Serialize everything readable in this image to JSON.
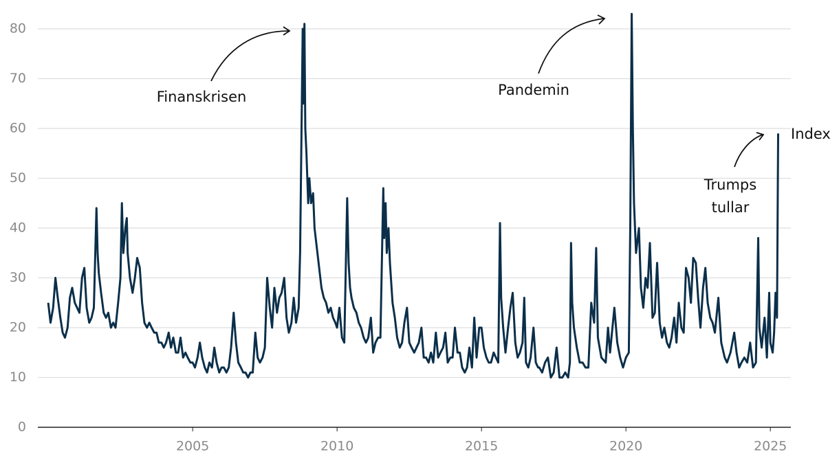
{
  "chart_data": {
    "type": "line",
    "ylabel": "Index",
    "color": "#0b2f4a",
    "grid": true,
    "xlim": [
      1999.64,
      2025.71
    ],
    "ylim": [
      0,
      80
    ],
    "xticks": [
      2005,
      2010,
      2015,
      2020,
      2025
    ],
    "yticks": [
      0,
      10,
      20,
      30,
      40,
      50,
      60,
      70,
      80
    ],
    "annotations": [
      {
        "lines": [
          "Finanskrisen"
        ]
      },
      {
        "lines": [
          "Pandemin"
        ]
      },
      {
        "lines": [
          "Trumps",
          "tullar"
        ]
      }
    ],
    "x": [
      2000.0,
      2000.08,
      2000.17,
      2000.25,
      2000.33,
      2000.42,
      2000.5,
      2000.58,
      2000.67,
      2000.75,
      2000.83,
      2000.92,
      2001.0,
      2001.08,
      2001.17,
      2001.25,
      2001.33,
      2001.42,
      2001.5,
      2001.58,
      2001.67,
      2001.71,
      2001.75,
      2001.83,
      2001.92,
      2002.0,
      2002.08,
      2002.17,
      2002.25,
      2002.33,
      2002.42,
      2002.5,
      2002.55,
      2002.6,
      2002.67,
      2002.72,
      2002.75,
      2002.83,
      2002.92,
      2003.0,
      2003.08,
      2003.17,
      2003.25,
      2003.33,
      2003.42,
      2003.5,
      2003.58,
      2003.67,
      2003.75,
      2003.83,
      2003.92,
      2004.0,
      2004.08,
      2004.17,
      2004.25,
      2004.33,
      2004.42,
      2004.5,
      2004.58,
      2004.67,
      2004.75,
      2004.83,
      2004.92,
      2005.0,
      2005.08,
      2005.17,
      2005.25,
      2005.33,
      2005.42,
      2005.5,
      2005.58,
      2005.67,
      2005.75,
      2005.83,
      2005.92,
      2006.0,
      2006.08,
      2006.17,
      2006.25,
      2006.33,
      2006.42,
      2006.5,
      2006.58,
      2006.67,
      2006.75,
      2006.83,
      2006.92,
      2007.0,
      2007.08,
      2007.17,
      2007.25,
      2007.33,
      2007.42,
      2007.5,
      2007.58,
      2007.67,
      2007.75,
      2007.83,
      2007.92,
      2008.0,
      2008.08,
      2008.17,
      2008.25,
      2008.33,
      2008.42,
      2008.5,
      2008.58,
      2008.67,
      2008.72,
      2008.76,
      2008.79,
      2008.81,
      2008.84,
      2008.87,
      2008.9,
      2008.94,
      2009.0,
      2009.04,
      2009.1,
      2009.17,
      2009.22,
      2009.3,
      2009.38,
      2009.46,
      2009.54,
      2009.62,
      2009.7,
      2009.78,
      2009.86,
      2009.94,
      2010.0,
      2010.08,
      2010.17,
      2010.25,
      2010.35,
      2010.4,
      2010.45,
      2010.5,
      2010.58,
      2010.67,
      2010.75,
      2010.83,
      2010.92,
      2011.0,
      2011.08,
      2011.17,
      2011.25,
      2011.33,
      2011.42,
      2011.5,
      2011.6,
      2011.63,
      2011.68,
      2011.72,
      2011.78,
      2011.83,
      2011.92,
      2012.0,
      2012.08,
      2012.17,
      2012.25,
      2012.33,
      2012.42,
      2012.5,
      2012.58,
      2012.67,
      2012.75,
      2012.83,
      2012.92,
      2013.0,
      2013.08,
      2013.17,
      2013.25,
      2013.33,
      2013.42,
      2013.5,
      2013.58,
      2013.67,
      2013.75,
      2013.83,
      2013.92,
      2014.0,
      2014.08,
      2014.17,
      2014.25,
      2014.33,
      2014.42,
      2014.5,
      2014.58,
      2014.67,
      2014.75,
      2014.83,
      2014.92,
      2015.0,
      2015.08,
      2015.17,
      2015.25,
      2015.33,
      2015.42,
      2015.5,
      2015.58,
      2015.64,
      2015.68,
      2015.75,
      2015.83,
      2015.92,
      2016.0,
      2016.08,
      2016.17,
      2016.25,
      2016.33,
      2016.42,
      2016.48,
      2016.54,
      2016.62,
      2016.7,
      2016.8,
      2016.88,
      2016.96,
      2017.0,
      2017.1,
      2017.2,
      2017.3,
      2017.4,
      2017.5,
      2017.6,
      2017.7,
      2017.8,
      2017.9,
      2018.0,
      2018.06,
      2018.1,
      2018.14,
      2018.2,
      2018.3,
      2018.4,
      2018.5,
      2018.6,
      2018.7,
      2018.8,
      2018.9,
      2018.97,
      2019.03,
      2019.15,
      2019.3,
      2019.38,
      2019.45,
      2019.6,
      2019.7,
      2019.8,
      2019.9,
      2020.0,
      2020.1,
      2020.15,
      2020.2,
      2020.24,
      2020.28,
      2020.35,
      2020.45,
      2020.52,
      2020.6,
      2020.68,
      2020.75,
      2020.83,
      2020.92,
      2021.0,
      2021.08,
      2021.17,
      2021.25,
      2021.33,
      2021.42,
      2021.5,
      2021.58,
      2021.67,
      2021.75,
      2021.83,
      2021.92,
      2022.0,
      2022.08,
      2022.17,
      2022.25,
      2022.33,
      2022.42,
      2022.5,
      2022.58,
      2022.67,
      2022.75,
      2022.83,
      2022.92,
      2023.0,
      2023.08,
      2023.2,
      2023.3,
      2023.42,
      2023.5,
      2023.62,
      2023.75,
      2023.83,
      2023.92,
      2024.0,
      2024.1,
      2024.2,
      2024.3,
      2024.4,
      2024.5,
      2024.58,
      2024.62,
      2024.7,
      2024.8,
      2024.88,
      2024.96,
      2025.0,
      2025.08,
      2025.13,
      2025.18,
      2025.23,
      2025.27
    ],
    "values": [
      25,
      21,
      24,
      30,
      26,
      22,
      19,
      18,
      20,
      26,
      28,
      25,
      24,
      23,
      30,
      32,
      24,
      21,
      22,
      24,
      44,
      35,
      31,
      27,
      23,
      22,
      23,
      20,
      21,
      20,
      25,
      30,
      45,
      35,
      40,
      42,
      35,
      30,
      27,
      30,
      34,
      32,
      25,
      21,
      20,
      21,
      20,
      19,
      19,
      17,
      17,
      16,
      17,
      19,
      16,
      18,
      15,
      15,
      18,
      14,
      15,
      14,
      13,
      13,
      12,
      14,
      17,
      14,
      12,
      11,
      13,
      12,
      16,
      13,
      11,
      12,
      12,
      11,
      12,
      16,
      23,
      17,
      13,
      12,
      11,
      11,
      10,
      11,
      11,
      19,
      14,
      13,
      14,
      16,
      30,
      24,
      20,
      28,
      23,
      26,
      27,
      30,
      22,
      19,
      21,
      26,
      21,
      24,
      35,
      55,
      70,
      80,
      65,
      81,
      60,
      55,
      45,
      50,
      45,
      47,
      40,
      36,
      32,
      28,
      26,
      25,
      23,
      24,
      22,
      21,
      20,
      24,
      18,
      17,
      46,
      33,
      28,
      26,
      24,
      23,
      21,
      20,
      18,
      17,
      18,
      22,
      15,
      17,
      18,
      18,
      48,
      38,
      45,
      35,
      40,
      33,
      25,
      22,
      18,
      16,
      17,
      21,
      24,
      17,
      16,
      15,
      16,
      17,
      20,
      14,
      14,
      13,
      15,
      13,
      19,
      14,
      15,
      16,
      19,
      13,
      14,
      14,
      20,
      15,
      15,
      12,
      11,
      12,
      16,
      12,
      22,
      14,
      20,
      20,
      16,
      14,
      13,
      13,
      15,
      14,
      13,
      41,
      26,
      20,
      15,
      20,
      24,
      27,
      17,
      14,
      15,
      17,
      26,
      13,
      12,
      14,
      20,
      13,
      12,
      12,
      11,
      13,
      14,
      10,
      11,
      16,
      10,
      10,
      11,
      10,
      13,
      37,
      25,
      20,
      16,
      13,
      13,
      12,
      12,
      25,
      21,
      36,
      18,
      14,
      13,
      20,
      15,
      24,
      17,
      14,
      12,
      14,
      15,
      40,
      83,
      60,
      45,
      35,
      40,
      28,
      24,
      30,
      28,
      37,
      22,
      23,
      33,
      21,
      18,
      20,
      17,
      16,
      18,
      22,
      17,
      25,
      20,
      19,
      32,
      30,
      25,
      34,
      33,
      26,
      20,
      28,
      32,
      25,
      22,
      21,
      19,
      26,
      17,
      14,
      13,
      15,
      19,
      15,
      12,
      13,
      14,
      13,
      17,
      12,
      13,
      38,
      20,
      16,
      22,
      14,
      27,
      17,
      15,
      19,
      27,
      22,
      59
    ]
  }
}
